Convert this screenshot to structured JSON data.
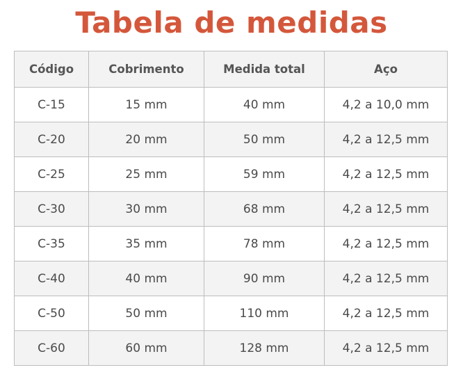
{
  "title": "Tabela de medidas",
  "colors": {
    "title": "#d4573b",
    "border": "#bdbdbd",
    "stripe": "#f3f3f3",
    "text": "#4a4a4a"
  },
  "table": {
    "headers": [
      "Código",
      "Cobrimento",
      "Medida total",
      "Aço"
    ],
    "rows": [
      [
        "C-15",
        "15 mm",
        "40 mm",
        "4,2 a 10,0 mm"
      ],
      [
        "C-20",
        "20 mm",
        "50 mm",
        "4,2 a 12,5 mm"
      ],
      [
        "C-25",
        "25 mm",
        "59 mm",
        "4,2 a 12,5 mm"
      ],
      [
        "C-30",
        "30 mm",
        "68 mm",
        "4,2 a 12,5 mm"
      ],
      [
        "C-35",
        "35 mm",
        "78 mm",
        "4,2 a 12,5 mm"
      ],
      [
        "C-40",
        "40 mm",
        "90 mm",
        "4,2 a 12,5 mm"
      ],
      [
        "C-50",
        "50 mm",
        "110 mm",
        "4,2 a 12,5 mm"
      ],
      [
        "C-60",
        "60 mm",
        "128 mm",
        "4,2 a 12,5 mm"
      ]
    ]
  }
}
